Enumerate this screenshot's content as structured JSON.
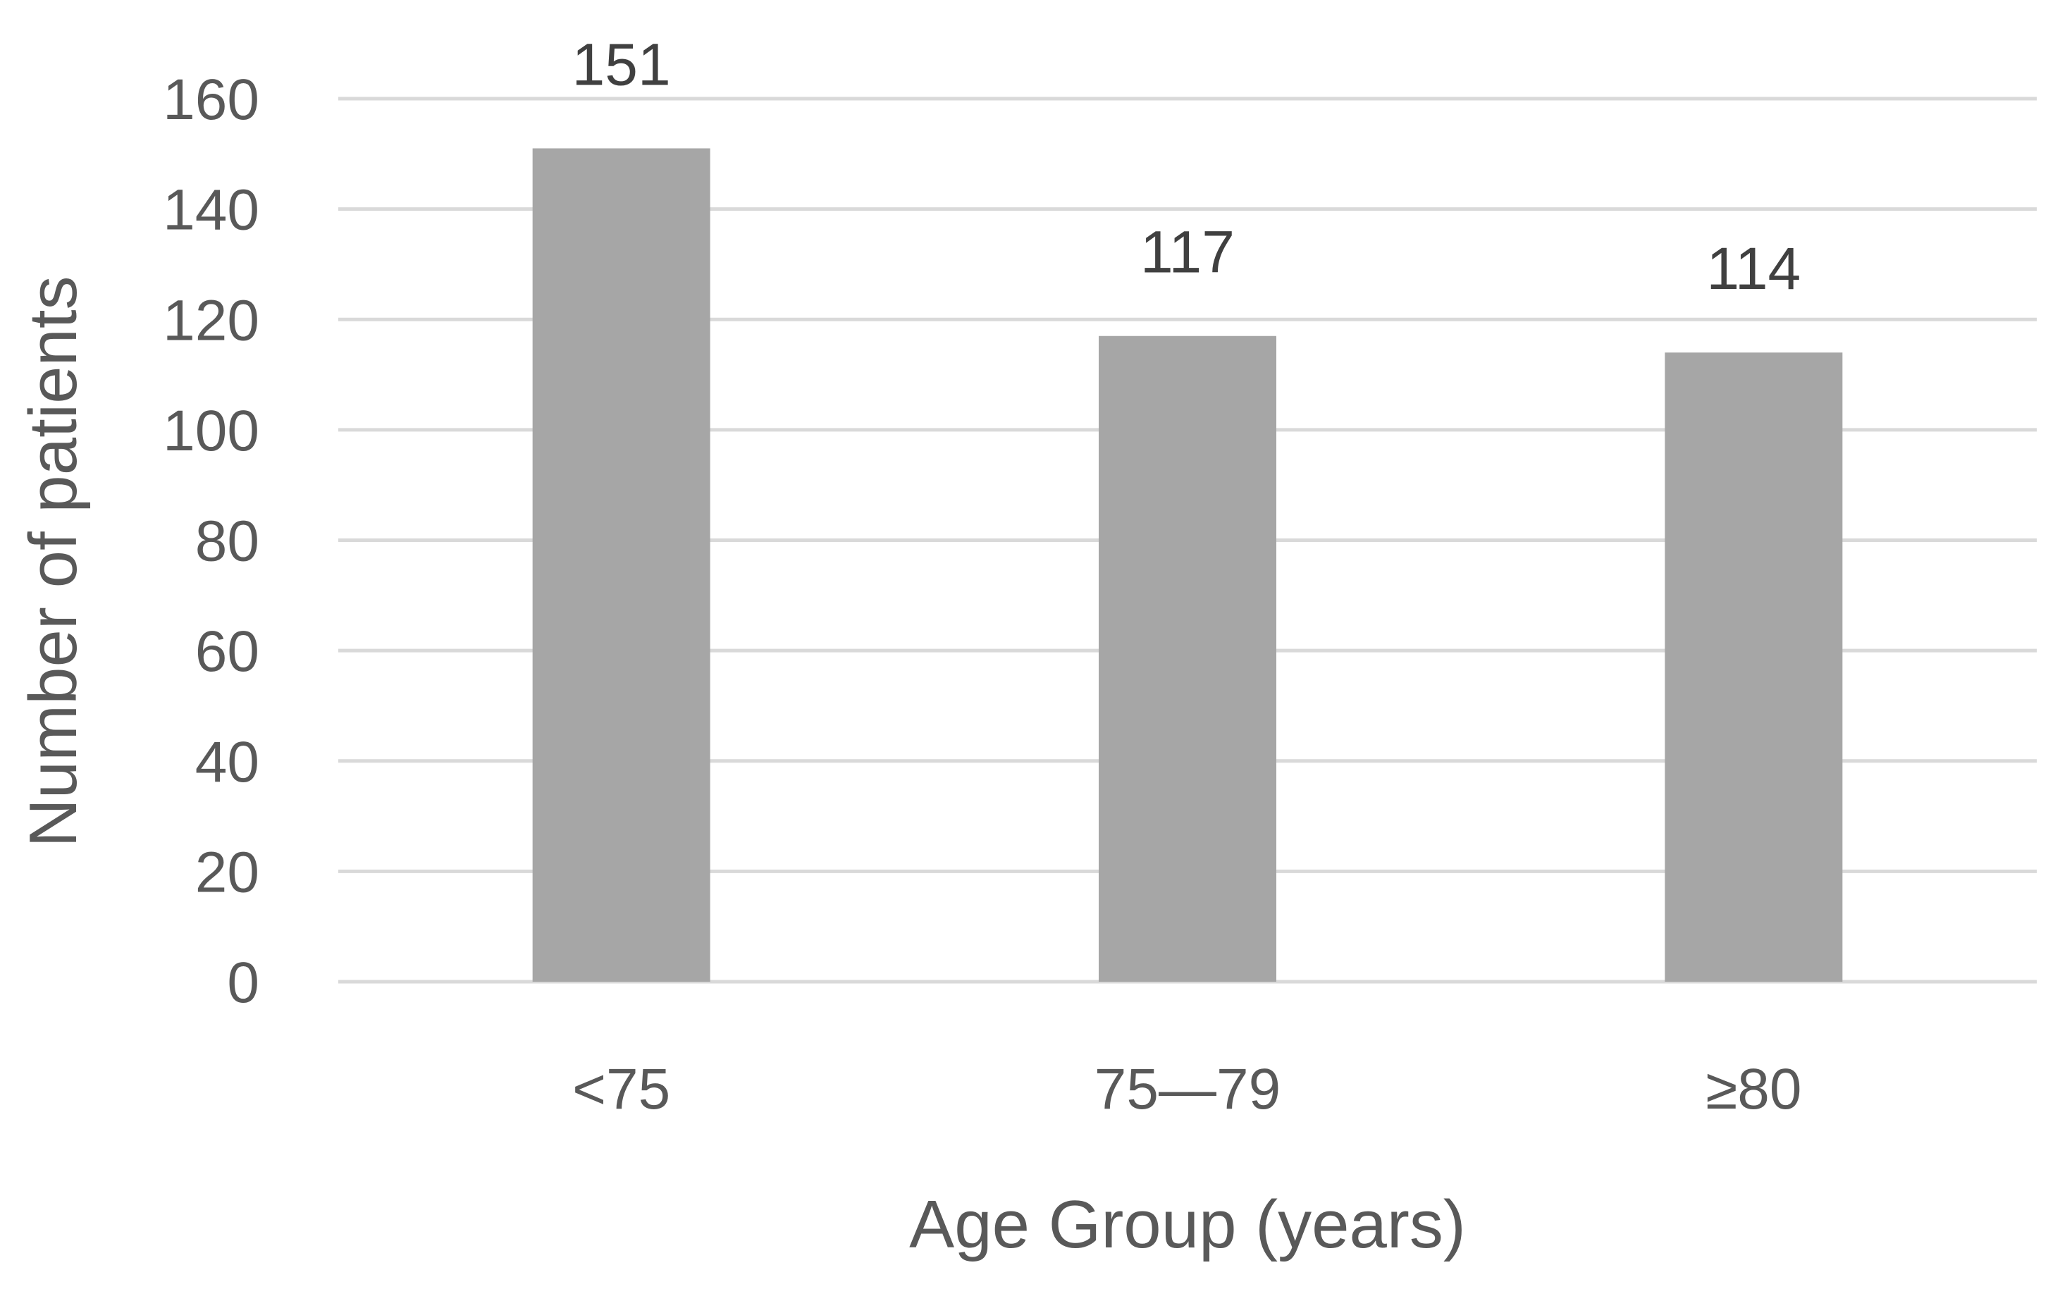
{
  "chart_data": {
    "type": "bar",
    "title": "",
    "xlabel": "Age Group (years)",
    "ylabel": "Number of patients",
    "categories": [
      "<75",
      "75—79",
      "≥80"
    ],
    "series": [
      {
        "values": [
          151,
          117,
          114
        ],
        "color": "#a6a6a6"
      }
    ],
    "ylim": [
      0,
      160
    ],
    "yticks": [
      0,
      20,
      40,
      60,
      80,
      100,
      120,
      140,
      160
    ],
    "ytick_labels": [
      "0",
      "20",
      "40",
      "60",
      "80",
      "100",
      "120",
      "140",
      "160"
    ],
    "data_labels": [
      "151",
      "117",
      "114"
    ],
    "grid": true,
    "legend": "none"
  }
}
